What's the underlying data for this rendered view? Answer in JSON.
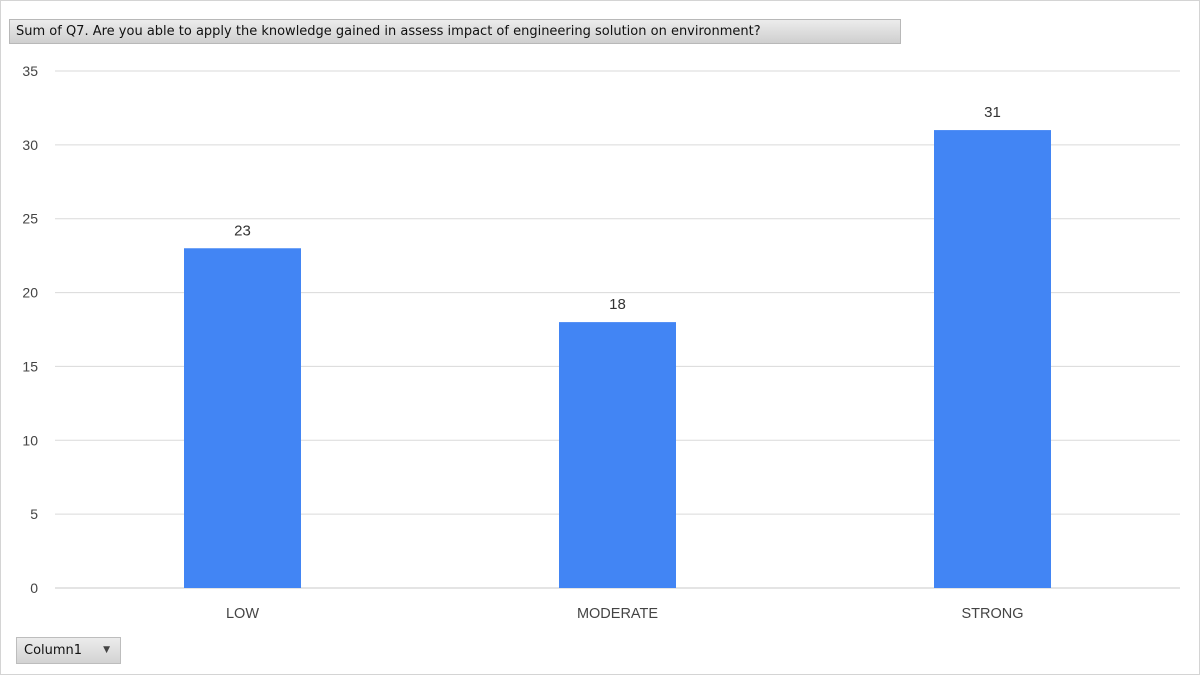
{
  "header": {
    "field_label": "Sum of Q7. Are you able to apply the knowledge gained in assess impact of engineering solution on environment?"
  },
  "filter_button": {
    "label": "Column1"
  },
  "colors": {
    "bar": "#4285f4",
    "gridline": "#dadada",
    "axis": "#c8c8c8"
  },
  "chart_data": {
    "type": "bar",
    "categories": [
      "LOW",
      "MODERATE",
      "STRONG"
    ],
    "values": [
      23,
      18,
      31
    ],
    "title": "",
    "xlabel": "",
    "ylabel": "",
    "ylim": [
      0,
      35
    ],
    "yticks": [
      0,
      5,
      10,
      15,
      20,
      25,
      30,
      35
    ],
    "data_labels": true,
    "grid": true,
    "legend": "none"
  }
}
